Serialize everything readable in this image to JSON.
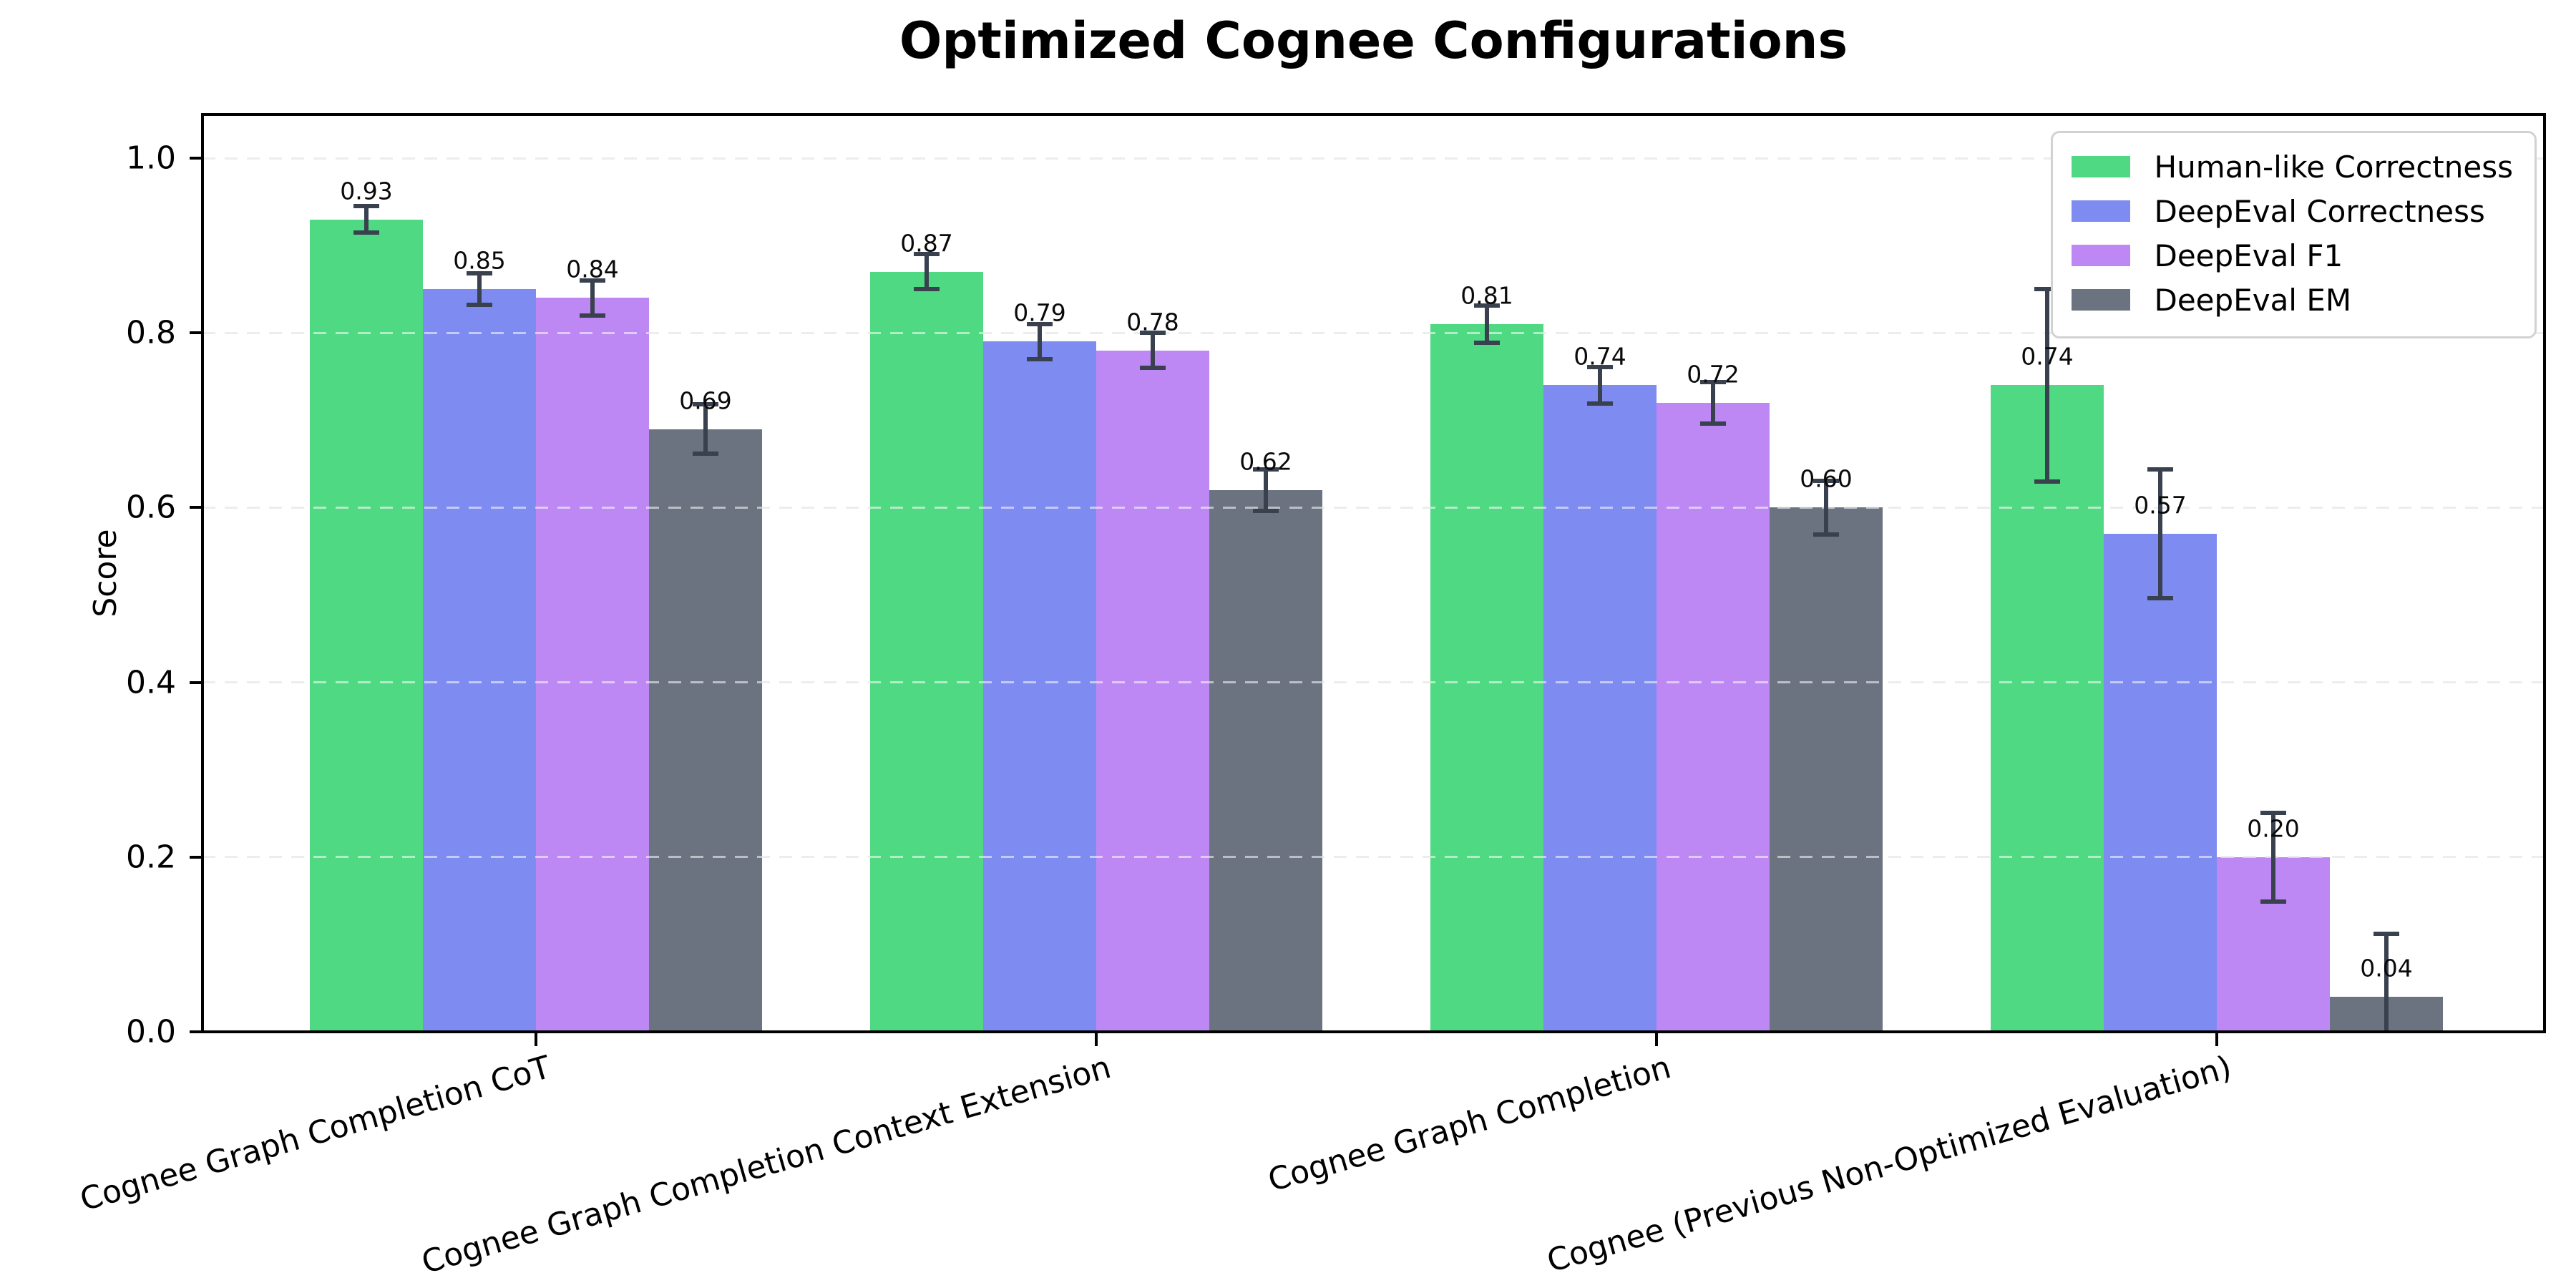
{
  "chart_data": {
    "type": "bar",
    "title": "Optimized Cognee Configurations",
    "ylabel": "Score",
    "categories": [
      "Cognee Graph Completion CoT",
      "Cognee Graph Completion Context Extension",
      "Cognee Graph Completion",
      "Cognee (Previous Non-Optimized Evaluation)"
    ],
    "series": [
      {
        "name": "Human-like Correctness",
        "color": "#4fd983",
        "values": [
          0.93,
          0.87,
          0.81,
          0.74
        ],
        "errors": [
          0.015,
          0.02,
          0.021,
          0.11
        ]
      },
      {
        "name": "DeepEval Correctness",
        "color": "#7e8bf1",
        "values": [
          0.85,
          0.79,
          0.74,
          0.57
        ],
        "errors": [
          0.018,
          0.02,
          0.021,
          0.074
        ]
      },
      {
        "name": "DeepEval F1",
        "color": "#bd88f4",
        "values": [
          0.84,
          0.78,
          0.72,
          0.2
        ],
        "errors": [
          0.02,
          0.02,
          0.024,
          0.051
        ]
      },
      {
        "name": "DeepEval EM",
        "color": "#6b7380",
        "values": [
          0.69,
          0.62,
          0.6,
          0.04
        ],
        "errors": [
          0.028,
          0.024,
          0.031,
          0.072
        ]
      }
    ],
    "yticks": [
      "0.0",
      "0.2",
      "0.4",
      "0.6",
      "0.8",
      "1.0"
    ],
    "ylim": [
      0,
      1.05
    ],
    "grid": "horizontal-dashed",
    "legend_position": "upper-right",
    "errorbar_color": "#39414f",
    "value_label_format": "0.2f"
  }
}
